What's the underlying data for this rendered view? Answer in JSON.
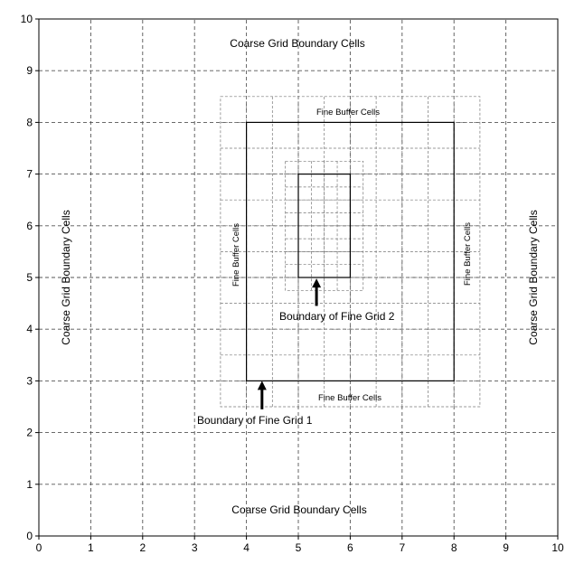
{
  "axes": {
    "x_ticks": [
      "0",
      "1",
      "2",
      "3",
      "4",
      "5",
      "6",
      "7",
      "8",
      "9",
      "10"
    ],
    "y_ticks": [
      "0",
      "1",
      "2",
      "3",
      "4",
      "5",
      "6",
      "7",
      "8",
      "9",
      "10"
    ],
    "xlim": [
      0,
      10
    ],
    "ylim": [
      0,
      10
    ]
  },
  "labels": {
    "coarse_top": "Coarse Grid Boundary Cells",
    "coarse_bottom": "Coarse Grid Boundary Cells",
    "coarse_left": "Coarse Grid Boundary Cells",
    "coarse_right": "Coarse Grid Boundary Cells",
    "fine_buffer_top": "Fine Buffer Cells",
    "fine_buffer_bottom": "Fine Buffer Cells",
    "fine_buffer_left": "Fine Buffer Cells",
    "fine_buffer_right": "Fine Buffer Cells",
    "boundary_fine_grid_1": "Boundary of Fine Grid 1",
    "boundary_fine_grid_2": "Boundary of Fine Grid 2"
  },
  "grids": {
    "coarse": {
      "x0": 0,
      "x1": 10,
      "y0": 0,
      "y1": 10,
      "step": 1
    },
    "fine_grid_1": {
      "boundary": [
        4,
        3,
        8,
        8
      ],
      "buffer_extent": [
        3.5,
        2.5,
        8.5,
        8.5
      ],
      "step": 0.5
    },
    "fine_grid_2": {
      "boundary": [
        5,
        5,
        6,
        7
      ],
      "buffer_extent": [
        4.75,
        4.75,
        6.25,
        7.25
      ],
      "step": 0.25
    }
  },
  "arrows": [
    {
      "x": 4.3,
      "y_tail": 2.45,
      "y_head": 3.0
    },
    {
      "x": 5.35,
      "y_tail": 4.45,
      "y_head": 4.98
    }
  ]
}
